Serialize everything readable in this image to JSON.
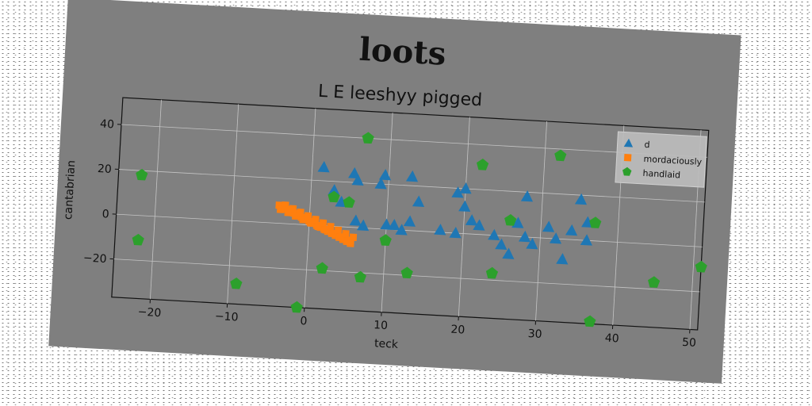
{
  "chart_data": {
    "type": "scatter",
    "suptitle": "loots",
    "title": "L E leeshyy pigged",
    "xlabel": "teck",
    "ylabel": "cantabrian",
    "xlim": [
      -25,
      51
    ],
    "ylim": [
      -37,
      52
    ],
    "xticks": [
      -20,
      -10,
      0,
      10,
      20,
      30,
      40,
      50
    ],
    "yticks": [
      -20,
      0,
      20,
      40
    ],
    "grid": true,
    "legend_position": "upper right",
    "series": [
      {
        "name": "d",
        "marker": "triangle",
        "color": "#1f77b4",
        "points": [
          [
            1.5,
            26
          ],
          [
            3,
            16
          ],
          [
            4,
            11
          ],
          [
            5.5,
            24
          ],
          [
            6,
            21
          ],
          [
            9,
            20
          ],
          [
            9.5,
            24
          ],
          [
            13,
            24
          ],
          [
            14,
            13
          ],
          [
            6,
            3
          ],
          [
            7,
            1
          ],
          [
            10,
            2
          ],
          [
            11,
            2
          ],
          [
            13,
            4
          ],
          [
            17,
            1
          ],
          [
            19,
            18
          ],
          [
            20,
            20
          ],
          [
            20,
            12
          ],
          [
            21,
            6
          ],
          [
            22,
            4
          ],
          [
            24,
            0
          ],
          [
            25,
            -4
          ],
          [
            26,
            -8
          ],
          [
            27,
            6
          ],
          [
            28,
            18
          ],
          [
            28,
            0
          ],
          [
            29,
            -3
          ],
          [
            31,
            5
          ],
          [
            32,
            0
          ],
          [
            33,
            -9
          ],
          [
            34,
            4
          ],
          [
            35,
            18
          ],
          [
            36,
            8
          ],
          [
            36,
            0
          ],
          [
            19,
            0
          ],
          [
            12,
            0
          ]
        ]
      },
      {
        "name": "mordaciously",
        "marker": "square",
        "color": "#ff7f0e",
        "points": [
          [
            -4,
            8
          ],
          [
            -3.5,
            7.2
          ],
          [
            -3,
            6.4
          ],
          [
            -2.5,
            5.6
          ],
          [
            -2,
            4.8
          ],
          [
            -1.5,
            4.0
          ],
          [
            -1,
            3.2
          ],
          [
            -0.5,
            2.4
          ],
          [
            0,
            1.6
          ],
          [
            0.5,
            0.8
          ],
          [
            1,
            0
          ],
          [
            1.5,
            -0.8
          ],
          [
            2,
            -1.6
          ],
          [
            2.5,
            -2.4
          ],
          [
            3,
            -3.2
          ],
          [
            3.5,
            -4.0
          ],
          [
            4,
            -4.8
          ],
          [
            4.5,
            -5.6
          ],
          [
            5,
            -6.4
          ],
          [
            5.5,
            -7.2
          ],
          [
            -3.8,
            6.2
          ],
          [
            -2.8,
            5.0
          ],
          [
            -1.8,
            3.6
          ],
          [
            -0.8,
            2.2
          ],
          [
            0.2,
            0.9
          ],
          [
            1.2,
            -0.5
          ],
          [
            2.2,
            -1.8
          ],
          [
            3.2,
            -3.2
          ],
          [
            4.2,
            -4.5
          ],
          [
            5.2,
            -5.8
          ],
          [
            -3.2,
            8.2
          ],
          [
            -2.2,
            6.8
          ],
          [
            -1.2,
            5.4
          ],
          [
            -0.2,
            4.0
          ],
          [
            0.8,
            2.6
          ],
          [
            1.8,
            1.2
          ],
          [
            2.8,
            -0.2
          ],
          [
            3.8,
            -1.6
          ],
          [
            4.8,
            -3.0
          ],
          [
            5.8,
            -4.4
          ]
        ]
      },
      {
        "name": "handlaid",
        "marker": "pentagon",
        "color": "#2ca02c",
        "points": [
          [
            -22,
            18
          ],
          [
            -22,
            -11
          ],
          [
            -9,
            -28
          ],
          [
            -1,
            -37
          ],
          [
            2,
            -19
          ],
          [
            3,
            13
          ],
          [
            5,
            11
          ],
          [
            7,
            40
          ],
          [
            7,
            -22
          ],
          [
            10,
            -5
          ],
          [
            13,
            -19
          ],
          [
            22,
            31
          ],
          [
            24,
            -17
          ],
          [
            26,
            7
          ],
          [
            32,
            37
          ],
          [
            37,
            8
          ],
          [
            37,
            -36
          ],
          [
            45,
            -17
          ],
          [
            46,
            -42
          ],
          [
            51,
            -9
          ]
        ]
      }
    ]
  }
}
